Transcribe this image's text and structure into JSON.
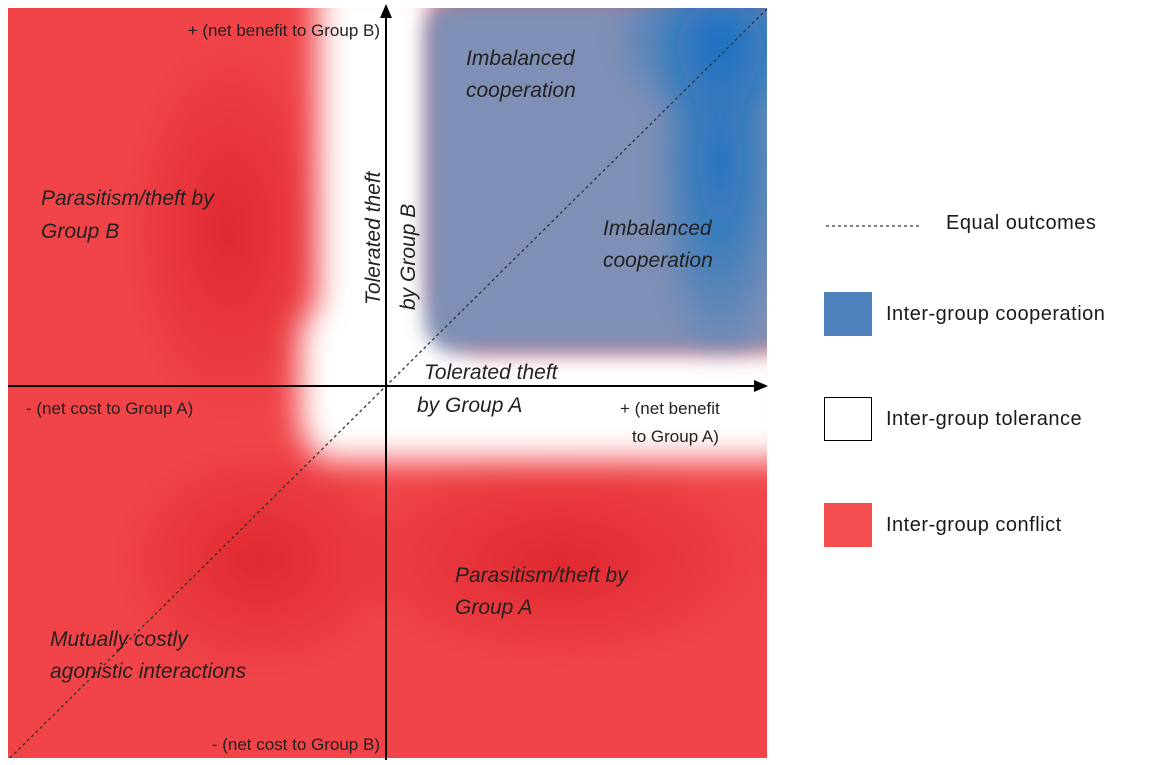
{
  "axes": {
    "y_top": "+ (net benefit to Group B)",
    "y_bottom": "- (net cost to Group B)",
    "x_left": "- (net cost to Group A)",
    "x_right_line1": "+ (net benefit",
    "x_right_line2": "to Group A)"
  },
  "regions": {
    "imbalanced_top_line1": "Imbalanced",
    "imbalanced_top_line2": "cooperation",
    "imbalanced_right_line1": "Imbalanced",
    "imbalanced_right_line2": "cooperation",
    "parasitism_b_line1": "Parasitism/theft by",
    "parasitism_b_line2": "Group B",
    "parasitism_a_line1": "Parasitism/theft by",
    "parasitism_a_line2": "Group A",
    "tolerated_b_line1": "Tolerated theft",
    "tolerated_b_line2": "by Group B",
    "tolerated_a_line1": "Tolerated theft",
    "tolerated_a_line2": "by Group A",
    "mutual_line1": "Mutually costly",
    "mutual_line2": "agonistic interactions"
  },
  "legend": {
    "equal": "Equal outcomes",
    "cooperation": "Inter-group  cooperation",
    "tolerance": "Inter-group  tolerance",
    "conflict": "Inter-group  conflict"
  },
  "colors": {
    "cooperation": "#4f81bd",
    "tolerance": "#ffffff",
    "conflict": "#f64f4f",
    "deep_blue": "#0b6ec4",
    "deep_red": "#e02128"
  }
}
